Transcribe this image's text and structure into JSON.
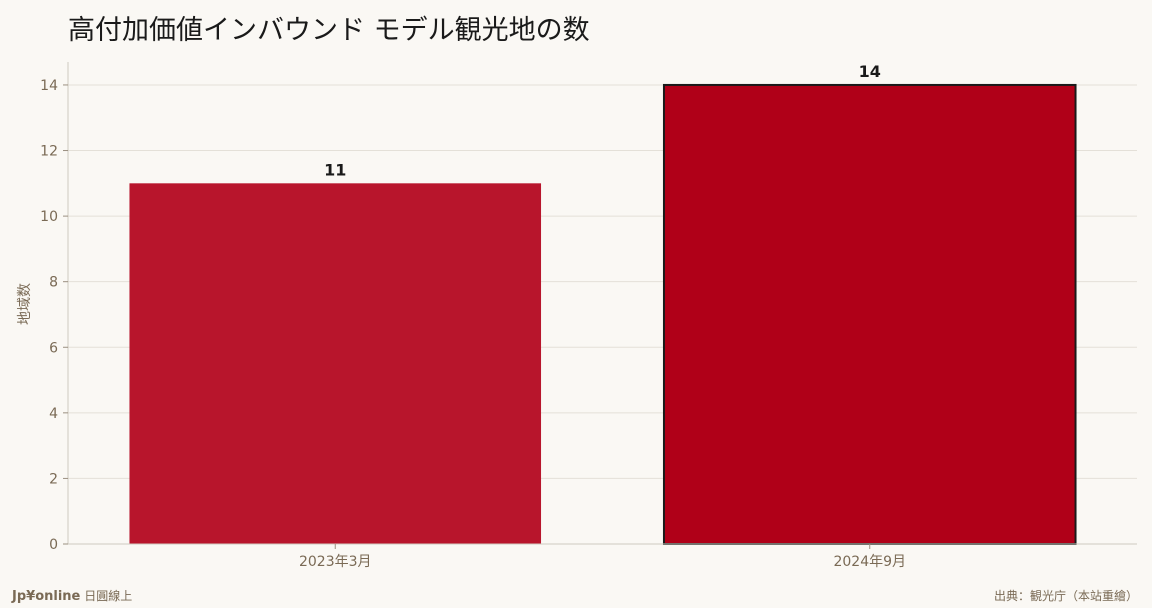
{
  "chart_data": {
    "type": "bar",
    "title": "高付加価値インバウンド モデル観光地の数",
    "xlabel": "",
    "ylabel": "地域数",
    "categories": [
      "2023年3月",
      "2024年9月"
    ],
    "values": [
      11,
      14
    ],
    "data_labels": [
      "11",
      "14"
    ],
    "ylim": [
      0,
      14.7
    ],
    "yticks": [
      "0",
      "2",
      "4",
      "6",
      "8",
      "10",
      "12",
      "14"
    ],
    "grid": true,
    "bar_colors": [
      "#b8152c",
      "#b00018"
    ],
    "highlight_outline_color": "#1a1a1a"
  },
  "footer": {
    "brand": "Jp¥online",
    "brand_suffix": "日圓線上",
    "source": "出典：観光庁（本站重繪）"
  }
}
